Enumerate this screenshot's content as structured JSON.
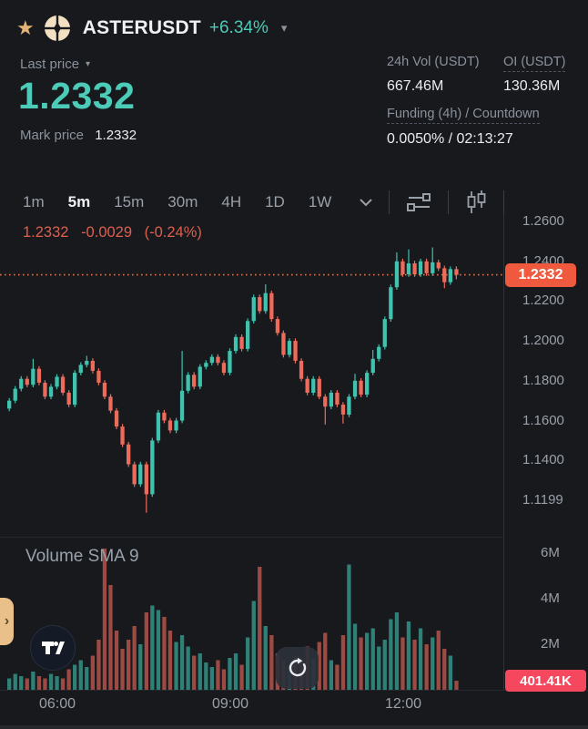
{
  "icons": {
    "star": "★",
    "caret_down": "▾",
    "refresh": "↺",
    "handle_chevron": "›"
  },
  "colors": {
    "teal": "#4ccbb8",
    "up": "#3fc2ae",
    "down": "#ed6b5b",
    "ohlc_text": "#de5f4e",
    "price_badge": "#ef5a3f",
    "volume_badge": "#f5485f",
    "dotted_line": "#ef6f3f"
  },
  "header": {
    "symbol": "ASTERUSDT",
    "change_pct": "+6.34%"
  },
  "ticker": {
    "last_price_label": "Last price",
    "last_price": "1.2332",
    "mark_price_label": "Mark price",
    "mark_price": "1.2332",
    "stats": [
      {
        "label": "24h Vol (USDT)",
        "value": "667.46M"
      },
      {
        "label": "OI (USDT)",
        "value": "130.36M"
      }
    ],
    "funding_label": "Funding (4h) / Countdown",
    "funding_value": "0.0050% / 02:13:27"
  },
  "toolbar": {
    "timeframes": [
      "1m",
      "5m",
      "15m",
      "30m",
      "4H",
      "1D",
      "1W"
    ],
    "active": "5m"
  },
  "ohlc_readout": {
    "price": "1.2332",
    "change": "-0.0029",
    "change_pct": "(-0.24%)"
  },
  "price_axis": {
    "badge": "1.2332"
  },
  "volume_pane": {
    "title": "Volume SMA 9",
    "axis": [
      "6M",
      "4M",
      "2M"
    ],
    "badge": "401.41K"
  },
  "chart_data": {
    "type": "candlestick",
    "symbol": "ASTERUSDT",
    "interval": "5m",
    "last_price": 1.2332,
    "ylim": [
      1.1021,
      1.2637
    ],
    "volume_ylim": [
      0,
      6.6
    ],
    "grid": false,
    "legend_position": "none",
    "price_axis_labels": [
      {
        "text": "1.2600",
        "price": 1.26
      },
      {
        "text": "1.2400",
        "price": 1.24
      },
      {
        "text": "1.2200",
        "price": 1.22
      },
      {
        "text": "1.2000",
        "price": 1.2
      },
      {
        "text": "1.1800",
        "price": 1.18
      },
      {
        "text": "1.1600",
        "price": 1.16
      },
      {
        "text": "1.1400",
        "price": 1.14
      },
      {
        "text": "1.1199",
        "price": 1.1199
      }
    ],
    "time_ticks": [
      {
        "label": "06:00",
        "x": 63
      },
      {
        "label": "09:00",
        "x": 253
      },
      {
        "label": "12:00",
        "x": 443
      }
    ],
    "layout": {
      "x0": 8,
      "step": 6.55,
      "body_width": 4.3,
      "pane_width": 553,
      "price_pane_height": 353,
      "volume_pane_height": 165
    },
    "sma_period": 9,
    "candles": [
      [
        1.166,
        1.1713,
        1.1647,
        1.17
      ],
      [
        1.17,
        1.1773,
        1.1687,
        1.176
      ],
      [
        1.176,
        1.1823,
        1.1747,
        1.181
      ],
      [
        1.181,
        1.1823,
        1.1767,
        1.178
      ],
      [
        1.178,
        1.191,
        1.1767,
        1.186
      ],
      [
        1.186,
        1.1873,
        1.1777,
        1.179
      ],
      [
        1.179,
        1.1803,
        1.1707,
        1.172
      ],
      [
        1.172,
        1.1783,
        1.1707,
        1.177
      ],
      [
        1.177,
        1.1833,
        1.1757,
        1.182
      ],
      [
        1.182,
        1.1833,
        1.1727,
        1.174
      ],
      [
        1.174,
        1.1753,
        1.1667,
        1.168
      ],
      [
        1.168,
        1.1853,
        1.1667,
        1.184
      ],
      [
        1.184,
        1.1893,
        1.1827,
        1.188
      ],
      [
        1.188,
        1.1925,
        1.1867,
        1.19
      ],
      [
        1.19,
        1.1913,
        1.1837,
        1.185
      ],
      [
        1.185,
        1.1863,
        1.1777,
        1.179
      ],
      [
        1.179,
        1.1803,
        1.1707,
        1.172
      ],
      [
        1.172,
        1.1733,
        1.1637,
        1.165
      ],
      [
        1.165,
        1.1663,
        1.1557,
        1.157
      ],
      [
        1.157,
        1.1583,
        1.1467,
        1.148
      ],
      [
        1.148,
        1.1493,
        1.1367,
        1.138
      ],
      [
        1.138,
        1.1393,
        1.1267,
        1.128
      ],
      [
        1.128,
        1.1393,
        1.1267,
        1.138
      ],
      [
        1.138,
        1.1393,
        1.1137,
        1.123
      ],
      [
        1.123,
        1.1513,
        1.1217,
        1.15
      ],
      [
        1.15,
        1.1653,
        1.1487,
        1.164
      ],
      [
        1.164,
        1.1653,
        1.1587,
        1.16
      ],
      [
        1.16,
        1.1613,
        1.1537,
        1.155
      ],
      [
        1.155,
        1.1613,
        1.1537,
        1.16
      ],
      [
        1.16,
        1.195,
        1.1587,
        1.175
      ],
      [
        1.175,
        1.1843,
        1.1737,
        1.183
      ],
      [
        1.183,
        1.1843,
        1.1757,
        1.177
      ],
      [
        1.177,
        1.1883,
        1.1757,
        1.187
      ],
      [
        1.187,
        1.1903,
        1.1857,
        1.189
      ],
      [
        1.189,
        1.1933,
        1.1877,
        1.192
      ],
      [
        1.192,
        1.1933,
        1.1877,
        1.189
      ],
      [
        1.189,
        1.1903,
        1.1827,
        1.184
      ],
      [
        1.184,
        1.1963,
        1.1827,
        1.195
      ],
      [
        1.195,
        1.2033,
        1.1937,
        1.202
      ],
      [
        1.202,
        1.2033,
        1.1947,
        1.196
      ],
      [
        1.196,
        1.2113,
        1.1947,
        1.21
      ],
      [
        1.21,
        1.2233,
        1.2087,
        1.222
      ],
      [
        1.222,
        1.2233,
        1.2137,
        1.215
      ],
      [
        1.215,
        1.2285,
        1.2137,
        1.224
      ],
      [
        1.224,
        1.2253,
        1.2097,
        1.211
      ],
      [
        1.211,
        1.2123,
        1.2027,
        1.204
      ],
      [
        1.204,
        1.2053,
        1.1917,
        1.193
      ],
      [
        1.193,
        1.2013,
        1.1917,
        1.2
      ],
      [
        1.2,
        1.2013,
        1.1887,
        1.19
      ],
      [
        1.19,
        1.1913,
        1.1797,
        1.181
      ],
      [
        1.181,
        1.1823,
        1.1727,
        1.174
      ],
      [
        1.174,
        1.1823,
        1.1727,
        1.181
      ],
      [
        1.181,
        1.1823,
        1.1707,
        1.172
      ],
      [
        1.172,
        1.1733,
        1.158,
        1.167
      ],
      [
        1.167,
        1.1753,
        1.1657,
        1.174
      ],
      [
        1.174,
        1.1753,
        1.1667,
        1.168
      ],
      [
        1.168,
        1.1693,
        1.1585,
        1.163
      ],
      [
        1.163,
        1.1733,
        1.1617,
        1.172
      ],
      [
        1.172,
        1.1835,
        1.1707,
        1.18
      ],
      [
        1.18,
        1.1813,
        1.1717,
        1.173
      ],
      [
        1.173,
        1.1853,
        1.1717,
        1.184
      ],
      [
        1.184,
        1.1955,
        1.1827,
        1.191
      ],
      [
        1.191,
        1.1983,
        1.1897,
        1.197
      ],
      [
        1.197,
        1.2123,
        1.1957,
        1.211
      ],
      [
        1.211,
        1.2283,
        1.2097,
        1.227
      ],
      [
        1.227,
        1.2445,
        1.2257,
        1.24
      ],
      [
        1.24,
        1.2413,
        1.2322,
        1.2335
      ],
      [
        1.2335,
        1.246,
        1.2322,
        1.239
      ],
      [
        1.239,
        1.2403,
        1.2322,
        1.2335
      ],
      [
        1.2335,
        1.2413,
        1.2322,
        1.24
      ],
      [
        1.24,
        1.2413,
        1.2327,
        1.234
      ],
      [
        1.234,
        1.247,
        1.2327,
        1.2395
      ],
      [
        1.2395,
        1.2408,
        1.2352,
        1.2365
      ],
      [
        1.2365,
        1.2378,
        1.2265,
        1.2295
      ],
      [
        1.2295,
        1.2374,
        1.2282,
        1.2361
      ],
      [
        1.2361,
        1.2375,
        1.231,
        1.2332
      ]
    ],
    "volumes": [
      0.5,
      0.7,
      0.6,
      0.5,
      0.8,
      0.6,
      0.5,
      0.7,
      0.6,
      0.5,
      0.9,
      1.1,
      1.3,
      1.0,
      1.5,
      2.2,
      6.2,
      4.6,
      2.6,
      1.8,
      2.2,
      2.8,
      2.0,
      3.4,
      3.7,
      3.5,
      3.2,
      2.6,
      2.1,
      2.4,
      1.9,
      1.5,
      1.6,
      1.2,
      1.0,
      1.3,
      0.9,
      1.4,
      1.6,
      1.1,
      2.3,
      3.9,
      5.4,
      2.8,
      2.4,
      1.6,
      1.3,
      1.1,
      1.5,
      1.2,
      1.9,
      1.4,
      2.1,
      2.5,
      1.3,
      1.1,
      2.4,
      5.5,
      2.9,
      2.3,
      2.5,
      2.7,
      1.9,
      2.2,
      3.1,
      3.4,
      2.3,
      3.0,
      2.2,
      2.7,
      2.0,
      2.3,
      2.6,
      1.8,
      1.5,
      0.4014
    ]
  }
}
